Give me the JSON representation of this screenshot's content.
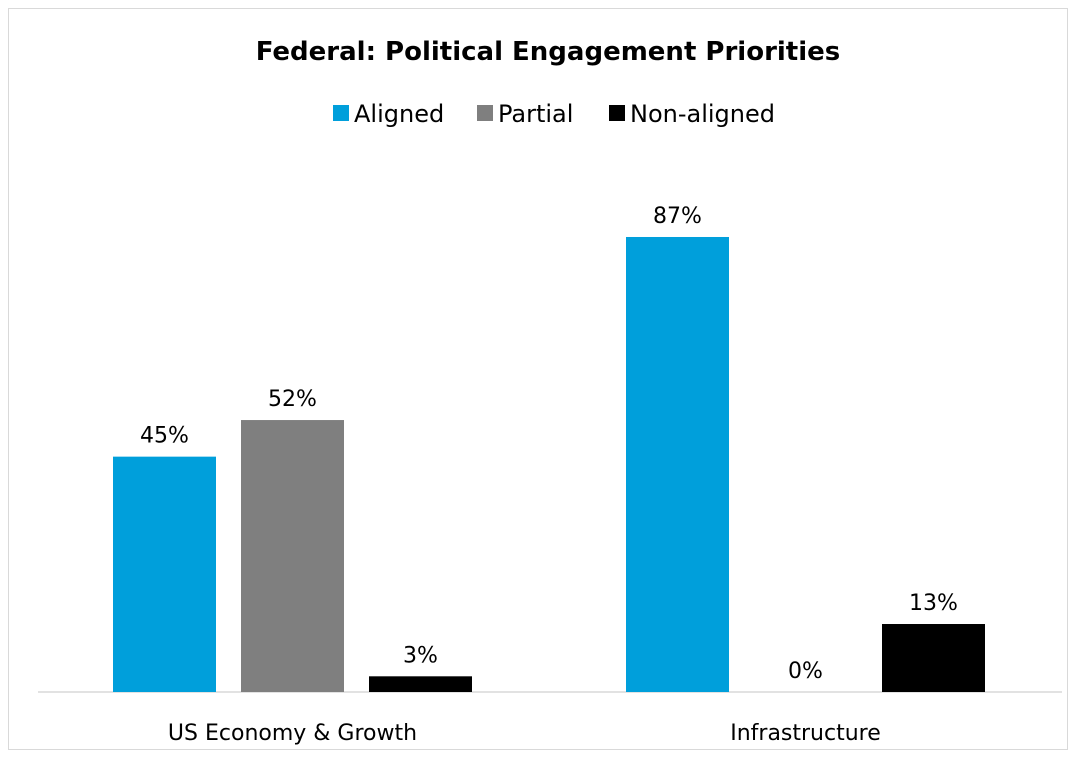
{
  "chart_data": {
    "type": "bar",
    "title": "Federal:  Political Engagement Priorities",
    "categories": [
      "US Economy & Growth",
      "Infrastructure"
    ],
    "series": [
      {
        "name": "Aligned",
        "values": [
          45,
          87
        ],
        "color": "#009fdb"
      },
      {
        "name": "Partial",
        "values": [
          52,
          0
        ],
        "color": "#7f7f7f"
      },
      {
        "name": "Non-aligned",
        "values": [
          3,
          13
        ],
        "color": "#000000"
      }
    ],
    "value_suffix": "%",
    "ylim": [
      0,
      100
    ],
    "legend_position": "top",
    "grid": false,
    "xlabel": "",
    "ylabel": ""
  }
}
